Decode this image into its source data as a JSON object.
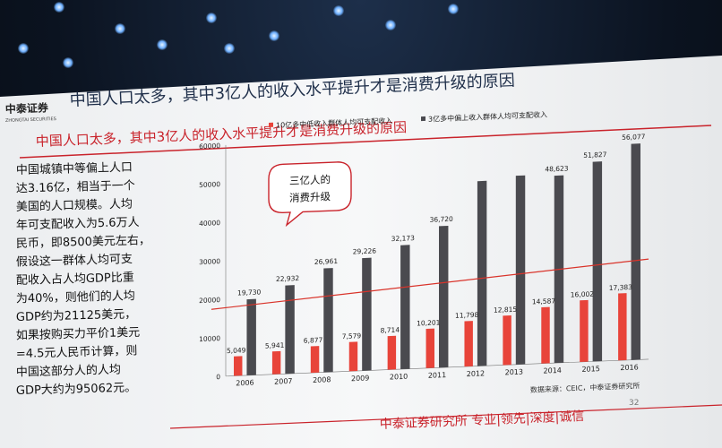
{
  "slide": {
    "title": "中国人口太多，其中3亿人的收入水平提升才是消费升级的原因",
    "subtitle": "中国人口太多，其中3亿人的收入水平提升才是消费升级的原因",
    "logo_cn": "中泰证券",
    "logo_en": "ZHONGTAI SECURITIES",
    "left_text_lines": [
      "中国城镇中等偏上人口",
      "达3.16亿，相当于一个",
      "美国的人口规模。人均",
      "年可支配收入为5.6万人",
      "民币，即8500美元左右，",
      "假设这一群体人均可支",
      "配收入占人均GDP比重",
      "为40%，则他们的人均",
      "GDP约为21125美元，",
      "如果按购买力平价1美元",
      "=4.5元人民币计算，则",
      "中国这部分人的人均",
      "GDP大约为95062元。"
    ],
    "callout": [
      "三亿人的",
      "消费升级"
    ],
    "source": "数据来源：CEIC，中泰证券研究所",
    "page_number": "32",
    "footer": "中泰证券研究所 专业|领先|深度|诚信"
  },
  "colors": {
    "red_series": "#e8443a",
    "dark_series": "#4a4a4f",
    "accent_red": "#c9232b",
    "trend_line": "#d9342b"
  },
  "chart_data": {
    "type": "bar",
    "categories": [
      "2006",
      "2007",
      "2008",
      "2009",
      "2010",
      "2011",
      "2012",
      "2013",
      "2014",
      "2015",
      "2016"
    ],
    "series": [
      {
        "name": "10亿多中低收入群体人均可支配收入",
        "values": [
          5049,
          5941,
          6877,
          7579,
          8714,
          10201,
          11798,
          12815,
          14587,
          16002,
          17383
        ],
        "labels": [
          "5,049",
          "5,941",
          "6,877",
          "7,579",
          "8,714",
          "10,201",
          "11,798",
          "12,815",
          "14,587",
          "16,002",
          "17,383"
        ]
      },
      {
        "name": "3亿多中偏上收入群体人均可支配收入",
        "values": [
          19730,
          22932,
          26961,
          29226,
          32173,
          36720,
          48000,
          49000,
          48623,
          51827,
          56077
        ],
        "labels": [
          "19,730",
          "22,932",
          "26,961",
          "29,226",
          "32,173",
          "36,720",
          "",
          "",
          "48,623",
          "51,827",
          "56,077"
        ]
      }
    ],
    "y_ticks": [
      "0",
      "10000",
      "20000",
      "30000",
      "40000",
      "50000",
      "60000"
    ],
    "ylim": [
      0,
      60000
    ],
    "trend_line": {
      "start": 17500,
      "end": 26000
    },
    "legend_position": "top"
  }
}
